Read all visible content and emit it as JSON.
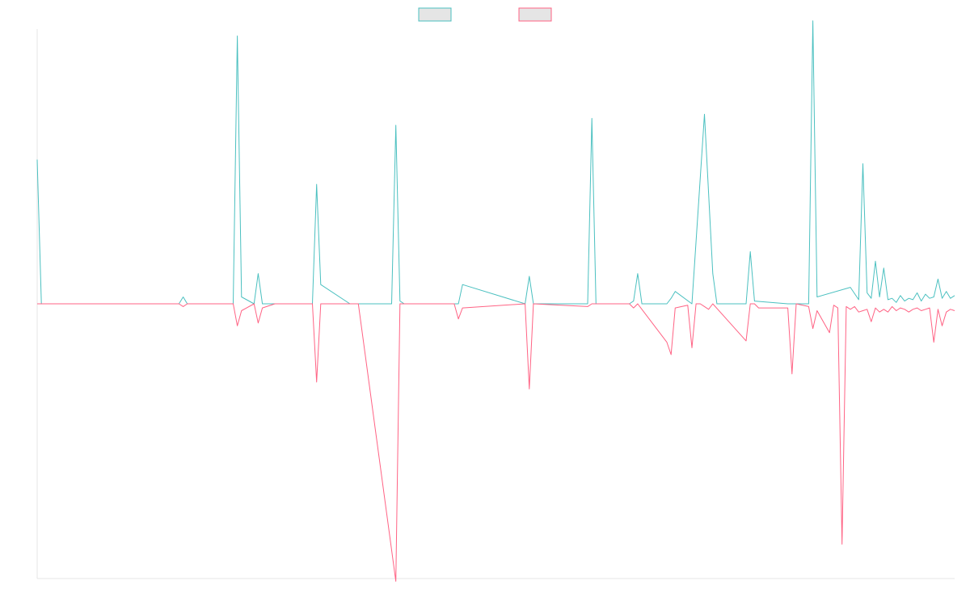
{
  "chart_data": {
    "type": "line",
    "title": "",
    "xlabel": "",
    "ylabel": "",
    "grid": false,
    "legend": "top-center",
    "xlim": [
      0,
      220
    ],
    "ylim": [
      -200,
      200
    ],
    "series": [
      {
        "color": "#4bc0c0",
        "fill": "#e5e5e5",
        "x": [
          0,
          1,
          16,
          34,
          35,
          36,
          47,
          48,
          49,
          52,
          53,
          54,
          57,
          66,
          67,
          68,
          75,
          76,
          77,
          85,
          86,
          87,
          88,
          95,
          100,
          101,
          102,
          117,
          118,
          119,
          132,
          133,
          134,
          142,
          143,
          144,
          145,
          151,
          152,
          153,
          157,
          160,
          162,
          163,
          164,
          165,
          167,
          170,
          171,
          172,
          180,
          181,
          182,
          185,
          186,
          187,
          195,
          197,
          198,
          199,
          200,
          201,
          202,
          203,
          204,
          205,
          206,
          207,
          208,
          209,
          210,
          211,
          212,
          213,
          214,
          215,
          216,
          217,
          218,
          219,
          220
        ],
        "values": [
          105,
          0,
          0,
          0,
          5,
          0,
          0,
          195,
          5,
          0,
          22,
          0,
          0,
          0,
          87,
          14,
          0,
          0,
          0,
          0,
          130,
          2,
          0,
          0,
          0,
          0,
          14,
          0,
          20,
          0,
          0,
          135,
          0,
          0,
          2,
          22,
          0,
          0,
          4,
          9,
          0,
          138,
          22,
          0,
          0,
          0,
          0,
          0,
          38,
          2,
          0,
          0,
          0,
          0,
          206,
          5,
          12,
          3,
          102,
          8,
          4,
          31,
          5,
          26,
          3,
          4,
          1,
          6,
          2,
          4,
          3,
          8,
          2,
          7,
          4,
          5,
          18,
          4,
          9,
          4,
          6
        ]
      },
      {
        "color": "#ff6384",
        "fill": "#e5e5e5",
        "x": [
          0,
          16,
          34,
          35,
          36,
          47,
          48,
          49,
          52,
          53,
          54,
          57,
          66,
          67,
          68,
          75,
          76,
          77,
          86,
          87,
          88,
          100,
          101,
          102,
          117,
          118,
          119,
          132,
          133,
          134,
          142,
          143,
          144,
          151,
          152,
          153,
          156,
          157,
          158,
          159,
          160,
          161,
          162,
          170,
          171,
          172,
          173,
          180,
          181,
          182,
          185,
          186,
          187,
          190,
          191,
          192,
          193,
          194,
          195,
          196,
          197,
          198,
          199,
          200,
          201,
          202,
          203,
          204,
          205,
          206,
          207,
          208,
          209,
          210,
          211,
          212,
          213,
          214,
          215,
          216,
          217,
          218,
          219,
          220
        ],
        "values": [
          0,
          0,
          0,
          -2,
          0,
          0,
          -16,
          -5,
          0,
          -14,
          -3,
          0,
          0,
          -57,
          0,
          0,
          0,
          0,
          -202,
          0,
          0,
          0,
          -11,
          -3,
          0,
          -62,
          0,
          -2,
          0,
          0,
          0,
          -3,
          0,
          -28,
          -37,
          -3,
          -1,
          -32,
          0,
          0,
          -2,
          -4,
          0,
          -27,
          0,
          0,
          -3,
          -3,
          -51,
          0,
          -2,
          -18,
          -5,
          -21,
          -1,
          -3,
          -175,
          -2,
          -4,
          -2,
          -6,
          -5,
          -4,
          -13,
          -3,
          -6,
          -4,
          -6,
          -2,
          -5,
          -3,
          -4,
          -6,
          -4,
          -3,
          -5,
          -4,
          -3,
          -28,
          -4,
          -16,
          -6,
          -4,
          -5
        ]
      }
    ]
  }
}
